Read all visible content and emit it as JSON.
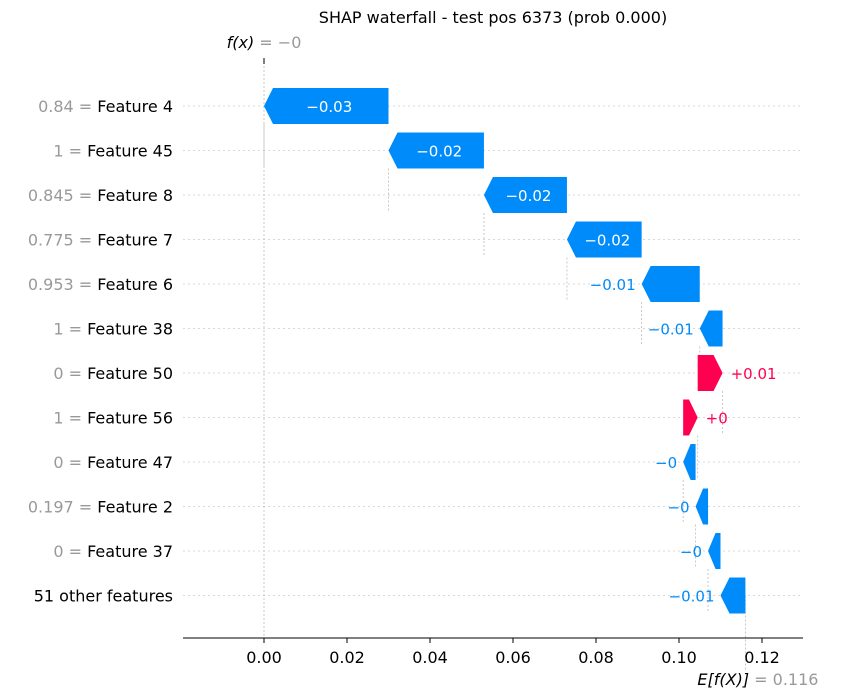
{
  "chart_data": {
    "type": "waterfall",
    "title": "SHAP waterfall - test pos 6373 (prob 0.000)",
    "fx_label": "f(x)",
    "fx_value_text": "= −0",
    "fx": -0.0,
    "base_label": "E[f(X)]",
    "base_value_text": "= 0.116",
    "base_value": 0.116,
    "xlim": [
      -0.02,
      0.13
    ],
    "xticks": [
      0.0,
      0.02,
      0.04,
      0.06,
      0.08,
      0.1,
      0.12
    ],
    "xtick_labels": [
      "0.00",
      "0.02",
      "0.04",
      "0.06",
      "0.08",
      "0.10",
      "0.12"
    ],
    "rows": [
      {
        "value_text": "0.84",
        "feature": "Feature 4",
        "start": 0.03,
        "end": 0.0,
        "label": "−0.03"
      },
      {
        "value_text": "1",
        "feature": "Feature 45",
        "start": 0.053,
        "end": 0.03,
        "label": "−0.02"
      },
      {
        "value_text": "0.845",
        "feature": "Feature 8",
        "start": 0.073,
        "end": 0.053,
        "label": "−0.02"
      },
      {
        "value_text": "0.775",
        "feature": "Feature 7",
        "start": 0.091,
        "end": 0.073,
        "label": "−0.02"
      },
      {
        "value_text": "0.953",
        "feature": "Feature 6",
        "start": 0.105,
        "end": 0.091,
        "label": "−0.01"
      },
      {
        "value_text": "1",
        "feature": "Feature 38",
        "start": 0.1105,
        "end": 0.105,
        "label": "−0.01"
      },
      {
        "value_text": "0",
        "feature": "Feature 50",
        "start": 0.1045,
        "end": 0.1105,
        "label": "+0.01"
      },
      {
        "value_text": "1",
        "feature": "Feature 56",
        "start": 0.101,
        "end": 0.1045,
        "label": "+0"
      },
      {
        "value_text": "0",
        "feature": "Feature 47",
        "start": 0.104,
        "end": 0.101,
        "label": "−0"
      },
      {
        "value_text": "0.197",
        "feature": "Feature 2",
        "start": 0.107,
        "end": 0.104,
        "label": "−0"
      },
      {
        "value_text": "0",
        "feature": "Feature 37",
        "start": 0.11,
        "end": 0.107,
        "label": "−0"
      },
      {
        "value_text": "",
        "feature": "51 other features",
        "start": 0.116,
        "end": 0.11,
        "label": "−0.01"
      }
    ],
    "colors": {
      "positive": "#ff0051",
      "negative": "#008bfb",
      "value_gray": "#999999",
      "text": "#000000",
      "grid": "#cccccc"
    }
  }
}
